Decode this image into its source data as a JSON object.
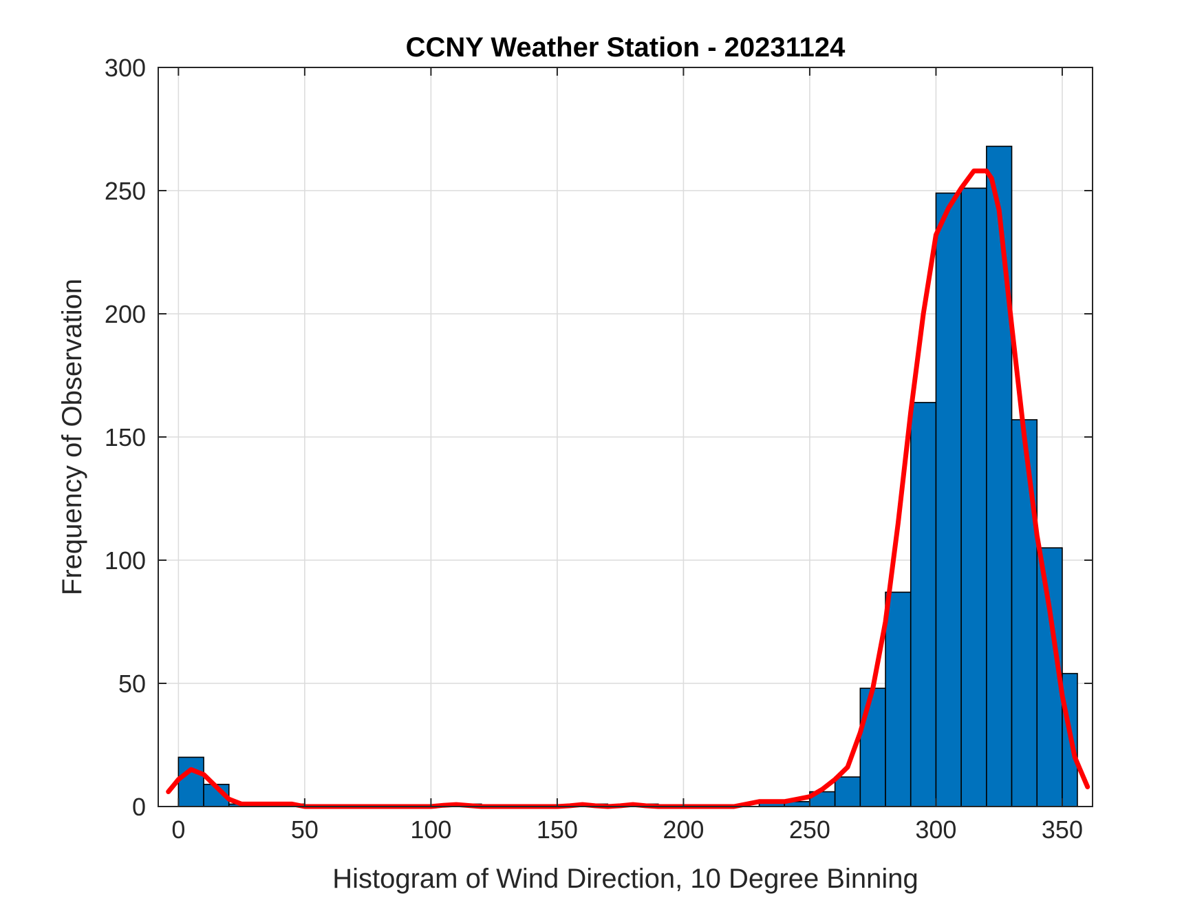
{
  "chart_data": {
    "type": "bar",
    "title": "CCNY Weather Station - 20231124",
    "xlabel": "Histogram of Wind Direction, 10 Degree Binning",
    "ylabel": "Frequency of Observation",
    "xlim": [
      -8,
      362
    ],
    "ylim": [
      0,
      300
    ],
    "xticks": [
      0,
      50,
      100,
      150,
      200,
      250,
      300,
      350
    ],
    "yticks": [
      0,
      50,
      100,
      150,
      200,
      250,
      300
    ],
    "grid": true,
    "bin_width": 10,
    "bin_edges": [
      0,
      10,
      20,
      30,
      40,
      50,
      60,
      70,
      80,
      90,
      100,
      110,
      120,
      130,
      140,
      150,
      160,
      170,
      180,
      190,
      200,
      210,
      220,
      230,
      240,
      250,
      260,
      270,
      280,
      290,
      300,
      310,
      320,
      330,
      340,
      350,
      356
    ],
    "values": [
      20,
      9,
      1,
      1,
      1,
      0,
      0,
      0,
      0,
      0,
      0,
      1,
      0,
      0,
      0,
      0,
      1,
      0,
      1,
      0,
      0,
      0,
      0,
      2,
      2,
      6,
      12,
      48,
      87,
      164,
      249,
      251,
      268,
      157,
      105,
      54
    ],
    "bar_color": "#0072BD",
    "fit_curve": {
      "color": "#FF0000",
      "x": [
        -4,
        0,
        5,
        10,
        15,
        20,
        25,
        30,
        40,
        45,
        50,
        60,
        80,
        100,
        105,
        110,
        120,
        140,
        150,
        155,
        160,
        165,
        170,
        175,
        180,
        185,
        190,
        200,
        210,
        220,
        225,
        230,
        235,
        240,
        245,
        250,
        255,
        260,
        265,
        270,
        275,
        280,
        285,
        290,
        295,
        300,
        305,
        310,
        315,
        320,
        322,
        325,
        330,
        335,
        340,
        345,
        350,
        355,
        360
      ],
      "y": [
        6,
        11,
        15,
        13,
        8,
        3,
        1,
        1,
        1,
        1,
        0,
        0,
        0,
        0,
        0.5,
        0.8,
        0,
        0,
        0,
        0.3,
        0.8,
        0.3,
        0,
        0.3,
        0.8,
        0.3,
        0,
        0,
        0,
        0,
        1,
        2,
        2,
        2,
        3,
        4,
        7,
        11,
        16,
        30,
        48,
        75,
        115,
        160,
        200,
        232,
        243,
        251,
        258,
        258,
        255,
        242,
        195,
        150,
        110,
        80,
        45,
        20,
        8
      ]
    }
  }
}
